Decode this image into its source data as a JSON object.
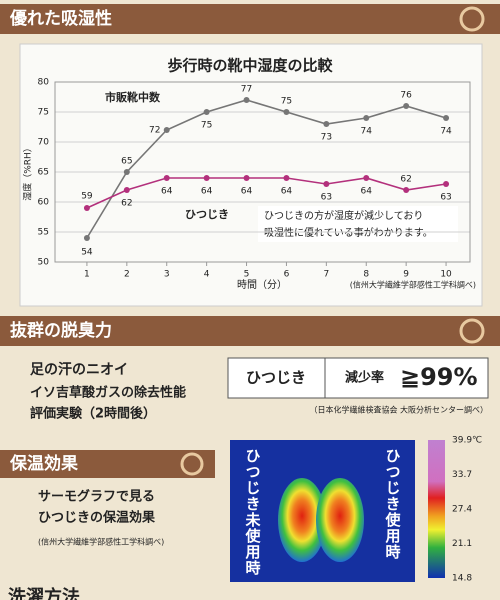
{
  "section1": {
    "title": "優れた吸湿性"
  },
  "chart_data": {
    "type": "line",
    "title": "歩行時の靴中湿度の比較",
    "xlabel": "時間（分）",
    "ylabel": "湿度（%RH）",
    "source": "(信州大学繊維学部感性工学科調べ)",
    "annotation": [
      "ひつじきの方が湿度が減少しており",
      "吸湿性に優れている事がわかります。"
    ],
    "x": [
      1,
      2,
      3,
      4,
      5,
      6,
      7,
      8,
      9,
      10
    ],
    "series": [
      {
        "name": "市販靴中数",
        "color": "#767676",
        "values": [
          54,
          65,
          72,
          75,
          77,
          75,
          73,
          74,
          76,
          74
        ]
      },
      {
        "name": "ひつじき",
        "color": "#b3307c",
        "values": [
          59,
          62,
          64,
          64,
          64,
          64,
          63,
          64,
          62,
          63
        ]
      }
    ],
    "xlim": [
      0.2,
      10.6
    ],
    "ylim": [
      50,
      80
    ],
    "xticks": [
      1,
      2,
      3,
      4,
      5,
      6,
      7,
      8,
      9,
      10
    ],
    "yticks": [
      50,
      55,
      60,
      65,
      70,
      75,
      80
    ],
    "grid": true
  },
  "deodorant": {
    "title": "抜群の脱臭力",
    "lines": [
      "足の汗のニオイ",
      "イソ吉草酸ガスの除去性能",
      "評価実験（2時間後）"
    ],
    "product": "ひつじき",
    "rate_label": "減少率",
    "rate": "≧99%",
    "source": "（日本化学繊維検査協会 大阪分析センター調べ）"
  },
  "warmth": {
    "title": "保温効果",
    "lines": [
      "サーモグラフで見る",
      "ひつじきの保温効果"
    ],
    "source": "(信州大学繊維学部感性工学科調べ)",
    "left_label": "ひつじき未使用時",
    "right_label": "ひつじき使用時",
    "scale": [
      "39.9℃",
      "33.7",
      "27.4",
      "21.1",
      "14.8"
    ]
  },
  "next_title": "洗濯方法"
}
